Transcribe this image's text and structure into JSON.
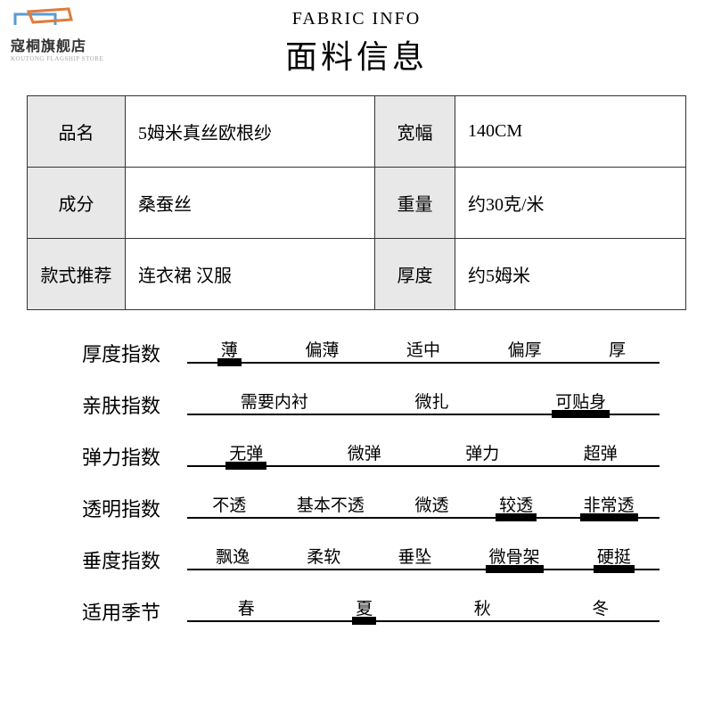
{
  "logo": {
    "text": "寇桐旗舰店",
    "sub": "KOUTONG FLAGSHIP STORE"
  },
  "header": {
    "en": "FABRIC INFO",
    "zh": "面料信息"
  },
  "spec": {
    "rows": [
      {
        "l1": "品名",
        "v1": "5姆米真丝欧根纱",
        "l2": "宽幅",
        "v2": "140CM"
      },
      {
        "l1": "成分",
        "v1": "桑蚕丝",
        "l2": "重量",
        "v2": "约30克/米"
      },
      {
        "l1": "款式推荐",
        "v1": "连衣裙 汉服",
        "l2": "厚度",
        "v2": "约5姆米"
      }
    ]
  },
  "scales": [
    {
      "name": "厚度指数",
      "options": [
        "薄",
        "偏薄",
        "适中",
        "偏厚",
        "厚"
      ],
      "selected": [
        0
      ]
    },
    {
      "name": "亲肤指数",
      "options": [
        "需要内衬",
        "微扎",
        "可贴身"
      ],
      "selected": [
        2
      ]
    },
    {
      "name": "弹力指数",
      "options": [
        "无弹",
        "微弹",
        "弹力",
        "超弹"
      ],
      "selected": [
        0
      ]
    },
    {
      "name": "透明指数",
      "options": [
        "不透",
        "基本不透",
        "微透",
        "较透",
        "非常透"
      ],
      "selected": [
        3,
        4
      ]
    },
    {
      "name": "垂度指数",
      "options": [
        "飘逸",
        "柔软",
        "垂坠",
        "微骨架",
        "硬挺"
      ],
      "selected": [
        3,
        4
      ]
    },
    {
      "name": "适用季节",
      "options": [
        "春",
        "夏",
        "秋",
        "冬"
      ],
      "selected": [
        1
      ]
    }
  ],
  "style": {
    "colors": {
      "bg": "#ffffff",
      "text": "#000000",
      "label_bg": "#e8e8e8",
      "border": "#333333"
    },
    "fontsize": {
      "header_en": 20,
      "header_zh": 36,
      "table": 20,
      "scale_name": 22,
      "scale_opt": 19
    }
  }
}
